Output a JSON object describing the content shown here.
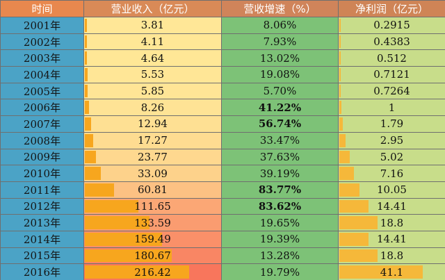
{
  "headers": {
    "year": "时间",
    "revenue": "营业收入（亿元）",
    "growth": "营收增速（%）",
    "profit": "净利润（亿元）"
  },
  "colors": {
    "year_cell": "#4ba3c6",
    "growth_cell": "#7dc277",
    "revenue_bar": "#f7a61e",
    "profit_bar": "#f5b83a"
  },
  "rows": [
    {
      "year": "2001年",
      "revenue": "3.81",
      "growth": "8.06%",
      "profit": "0.2915"
    },
    {
      "year": "2002年",
      "revenue": "4.11",
      "growth": "7.93%",
      "profit": "0.4383"
    },
    {
      "year": "2003年",
      "revenue": "4.64",
      "growth": "13.02%",
      "profit": "0.512"
    },
    {
      "year": "2004年",
      "revenue": "5.53",
      "growth": "19.08%",
      "profit": "0.7121"
    },
    {
      "year": "2005年",
      "revenue": "5.85",
      "growth": "5.70%",
      "profit": "0.7264"
    },
    {
      "year": "2006年",
      "revenue": "8.26",
      "growth": "41.22%",
      "profit": "1"
    },
    {
      "year": "2007年",
      "revenue": "12.94",
      "growth": "56.74%",
      "profit": "1.79"
    },
    {
      "year": "2008年",
      "revenue": "17.27",
      "growth": "33.47%",
      "profit": "2.95"
    },
    {
      "year": "2009年",
      "revenue": "23.77",
      "growth": "37.63%",
      "profit": "5.02"
    },
    {
      "year": "2010年",
      "revenue": "33.09",
      "growth": "39.19%",
      "profit": "7.16"
    },
    {
      "year": "2011年",
      "revenue": "60.81",
      "growth": "83.77%",
      "profit": "10.05"
    },
    {
      "year": "2012年",
      "revenue": "111.65",
      "growth": "83.62%",
      "profit": "14.41"
    },
    {
      "year": "2013年",
      "revenue": "133.59",
      "growth": "19.65%",
      "profit": "18.8"
    },
    {
      "year": "2014年",
      "revenue": "159.49",
      "growth": "19.39%",
      "profit": "14.41"
    },
    {
      "year": "2015年",
      "revenue": "180.67",
      "growth": "13.28%",
      "profit": "18.8"
    },
    {
      "year": "2016年",
      "revenue": "216.42",
      "growth": "19.79%",
      "profit": "41.1"
    }
  ]
}
